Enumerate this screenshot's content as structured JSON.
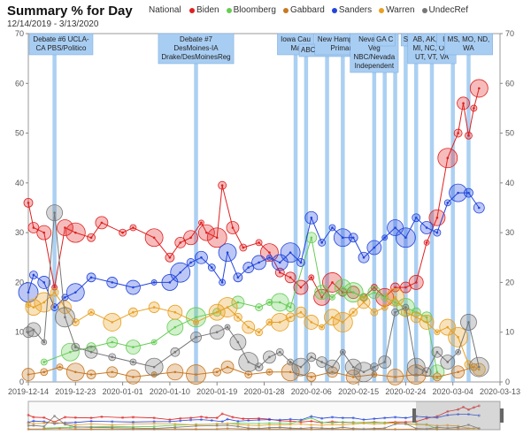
{
  "header": {
    "title": "Summary % for Day",
    "date_range": "12/14/2019 - 3/13/2020",
    "region": "National"
  },
  "colors": {
    "Biden": "#e02020",
    "Bloomberg": "#66cc55",
    "Gabbard": "#c87820",
    "Sanders": "#2244dd",
    "Warren": "#e8a020",
    "UndecRef": "#777777",
    "event_band": "#8fc0ee"
  },
  "chart_data": {
    "type": "scatter",
    "title": "Summary % for Day",
    "ylim": [
      0,
      70
    ],
    "yticks": [
      0,
      10,
      20,
      30,
      40,
      50,
      60,
      70
    ],
    "xticks": [
      "2019-12-14",
      "2019-12-23",
      "2020-01-01",
      "2020-01-10",
      "2020-01-19",
      "2020-01-28",
      "2020-02-06",
      "2020-02-15",
      "2020-02-24",
      "2020-03-04",
      "2020-03-13"
    ],
    "x_start": "2019-12-14",
    "x_end": "2020-03-13",
    "events": [
      {
        "day": 5,
        "label": [
          "Debate #6 UCLA-",
          "CA PBS/Politico"
        ]
      },
      {
        "day": 32,
        "label": [
          "Debate #7",
          "DesMoines-IA",
          "Drake/DesMoinesReg"
        ]
      },
      {
        "day": 51,
        "label": [
          "Iowa Cau",
          "Ma"
        ]
      },
      {
        "day": 53,
        "label": []
      },
      {
        "day": 57,
        "label": [
          "ABC/AppleNews"
        ]
      },
      {
        "day": 60,
        "label": [
          "New Hampshire",
          "Primary"
        ]
      },
      {
        "day": 66,
        "label": [
          "Nevada C",
          "Veg",
          "NBC/Nevada",
          "Independent"
        ]
      },
      {
        "day": 68,
        "label": [
          "GA C"
        ]
      },
      {
        "day": 70,
        "label": []
      },
      {
        "day": 72,
        "label": [
          "S"
        ]
      },
      {
        "day": 74,
        "label": []
      },
      {
        "day": 77,
        "label": [
          "AB, AK, CA,",
          "MI, NC, OK,",
          "UT, VT, VA"
        ]
      },
      {
        "day": 81,
        "label": [
          "IA, MI,"
        ]
      },
      {
        "day": 84,
        "label": [
          "MS, MO, ND,",
          "WA"
        ]
      }
    ],
    "series": [
      {
        "name": "Biden",
        "points": [
          [
            0,
            36
          ],
          [
            1,
            31
          ],
          [
            3,
            30
          ],
          [
            5,
            19
          ],
          [
            7,
            31
          ],
          [
            9,
            30
          ],
          [
            12,
            29
          ],
          [
            14,
            32
          ],
          [
            18,
            30
          ],
          [
            20,
            31
          ],
          [
            24,
            29
          ],
          [
            27,
            25
          ],
          [
            29,
            28
          ],
          [
            31,
            29
          ],
          [
            33,
            32
          ],
          [
            34,
            30
          ],
          [
            36,
            29
          ],
          [
            37,
            39.5
          ],
          [
            39,
            31
          ],
          [
            41,
            27
          ],
          [
            44,
            28
          ],
          [
            46,
            26
          ],
          [
            48,
            22
          ],
          [
            50,
            21
          ],
          [
            52,
            19
          ],
          [
            54,
            21
          ],
          [
            56,
            17
          ],
          [
            58,
            20
          ],
          [
            60,
            18
          ],
          [
            62,
            18
          ],
          [
            64,
            17
          ],
          [
            66,
            19
          ],
          [
            68,
            17
          ],
          [
            70,
            19
          ],
          [
            72,
            19
          ],
          [
            74,
            20
          ],
          [
            76,
            28
          ],
          [
            78,
            33
          ],
          [
            80,
            45
          ],
          [
            82,
            50
          ],
          [
            83,
            56
          ],
          [
            84,
            49.5
          ],
          [
            85,
            55
          ],
          [
            86,
            59
          ]
        ]
      },
      {
        "name": "Bloomberg",
        "points": [
          [
            3,
            4
          ],
          [
            8,
            6
          ],
          [
            12,
            7
          ],
          [
            16,
            8
          ],
          [
            20,
            7
          ],
          [
            24,
            8
          ],
          [
            28,
            11
          ],
          [
            32,
            13
          ],
          [
            36,
            14
          ],
          [
            40,
            16
          ],
          [
            44,
            15
          ],
          [
            46,
            16
          ],
          [
            48,
            16
          ],
          [
            50,
            15
          ],
          [
            54,
            29
          ],
          [
            56,
            18
          ],
          [
            58,
            17
          ],
          [
            60,
            19
          ],
          [
            62,
            18
          ],
          [
            64,
            17
          ],
          [
            66,
            18
          ],
          [
            68,
            17
          ],
          [
            70,
            16
          ],
          [
            72,
            15
          ],
          [
            74,
            14
          ],
          [
            76,
            13
          ],
          [
            78,
            2
          ]
        ]
      },
      {
        "name": "Gabbard",
        "points": [
          [
            0,
            1.5
          ],
          [
            3,
            2
          ],
          [
            6,
            3
          ],
          [
            9,
            2
          ],
          [
            12,
            1.5
          ],
          [
            16,
            2
          ],
          [
            20,
            1
          ],
          [
            24,
            1.5
          ],
          [
            28,
            2
          ],
          [
            32,
            1.5
          ],
          [
            36,
            2
          ],
          [
            38,
            3
          ],
          [
            42,
            1.5
          ],
          [
            46,
            2
          ],
          [
            50,
            2
          ],
          [
            54,
            1
          ],
          [
            58,
            2
          ],
          [
            62,
            1
          ],
          [
            66,
            1.5
          ],
          [
            70,
            1
          ],
          [
            74,
            1.5
          ],
          [
            78,
            1
          ],
          [
            82,
            2
          ],
          [
            85,
            3
          ]
        ]
      },
      {
        "name": "Sanders",
        "points": [
          [
            0,
            18
          ],
          [
            1,
            21.5
          ],
          [
            3,
            20
          ],
          [
            5,
            15
          ],
          [
            7,
            17
          ],
          [
            9,
            18
          ],
          [
            12,
            21
          ],
          [
            16,
            20
          ],
          [
            20,
            19
          ],
          [
            24,
            20
          ],
          [
            27,
            20
          ],
          [
            29,
            22
          ],
          [
            31,
            24
          ],
          [
            33,
            25
          ],
          [
            35,
            23
          ],
          [
            37,
            20
          ],
          [
            38,
            26
          ],
          [
            40,
            21
          ],
          [
            42,
            23
          ],
          [
            44,
            24
          ],
          [
            46,
            25
          ],
          [
            48,
            24
          ],
          [
            50,
            26
          ],
          [
            52,
            24
          ],
          [
            54,
            33
          ],
          [
            56,
            28
          ],
          [
            58,
            31
          ],
          [
            60,
            29
          ],
          [
            62,
            29
          ],
          [
            64,
            25
          ],
          [
            66,
            27
          ],
          [
            68,
            29
          ],
          [
            70,
            31
          ],
          [
            72,
            29
          ],
          [
            74,
            33
          ],
          [
            76,
            31
          ],
          [
            78,
            30
          ],
          [
            80,
            36
          ],
          [
            82,
            38
          ],
          [
            84,
            38
          ],
          [
            86,
            35
          ]
        ]
      },
      {
        "name": "Warren",
        "points": [
          [
            0,
            15.5
          ],
          [
            1,
            15
          ],
          [
            3,
            16
          ],
          [
            5,
            18
          ],
          [
            7,
            15
          ],
          [
            9,
            12
          ],
          [
            12,
            14
          ],
          [
            16,
            12
          ],
          [
            20,
            14
          ],
          [
            24,
            15
          ],
          [
            28,
            14
          ],
          [
            32,
            12
          ],
          [
            36,
            14
          ],
          [
            38,
            15
          ],
          [
            40,
            13
          ],
          [
            42,
            11
          ],
          [
            44,
            10
          ],
          [
            46,
            12
          ],
          [
            48,
            12
          ],
          [
            50,
            13
          ],
          [
            52,
            14
          ],
          [
            54,
            12
          ],
          [
            56,
            11
          ],
          [
            58,
            13
          ],
          [
            60,
            12
          ],
          [
            62,
            14
          ],
          [
            64,
            16
          ],
          [
            66,
            14
          ],
          [
            68,
            15
          ],
          [
            70,
            17
          ],
          [
            72,
            14
          ],
          [
            74,
            13
          ],
          [
            76,
            12
          ],
          [
            78,
            10
          ],
          [
            80,
            11
          ],
          [
            82,
            9
          ],
          [
            84,
            3.5
          ],
          [
            86,
            2.5
          ]
        ]
      },
      {
        "name": "UndecRef",
        "points": [
          [
            0,
            10
          ],
          [
            1,
            10.5
          ],
          [
            3,
            8
          ],
          [
            5,
            34
          ],
          [
            7,
            13
          ],
          [
            9,
            7
          ],
          [
            12,
            6
          ],
          [
            16,
            5
          ],
          [
            20,
            4
          ],
          [
            24,
            3
          ],
          [
            28,
            6
          ],
          [
            32,
            9
          ],
          [
            36,
            10
          ],
          [
            38,
            11
          ],
          [
            40,
            8
          ],
          [
            42,
            4
          ],
          [
            44,
            3
          ],
          [
            46,
            5
          ],
          [
            48,
            6
          ],
          [
            50,
            4
          ],
          [
            52,
            3
          ],
          [
            54,
            5
          ],
          [
            56,
            4
          ],
          [
            58,
            3
          ],
          [
            60,
            6
          ],
          [
            62,
            3
          ],
          [
            64,
            2
          ],
          [
            66,
            3
          ],
          [
            68,
            4
          ],
          [
            70,
            14
          ],
          [
            72,
            15
          ],
          [
            74,
            3
          ],
          [
            76,
            2
          ],
          [
            78,
            6
          ],
          [
            80,
            4
          ],
          [
            82,
            6
          ],
          [
            84,
            12
          ],
          [
            86,
            3
          ]
        ]
      }
    ]
  }
}
